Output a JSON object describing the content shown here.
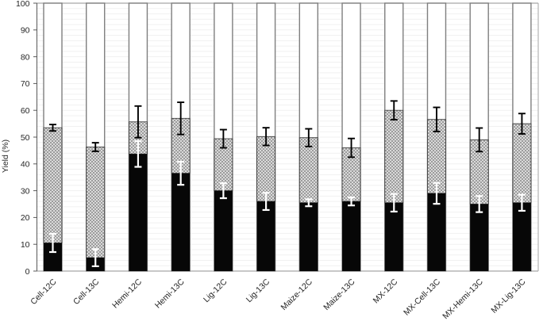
{
  "chart_data": {
    "type": "bar",
    "variant": "stacked-with-error-bars",
    "title": "",
    "xlabel": "",
    "ylabel": "Yield (%)",
    "ylim": [
      0,
      100
    ],
    "yticks": [
      0,
      10,
      20,
      30,
      40,
      50,
      60,
      70,
      80,
      90,
      100
    ],
    "grid": "minor horizontal gridlines every 2 units, very light",
    "legend": "none",
    "categories": [
      "Cell-12C",
      "Cell-13C",
      "Hemi-12C",
      "Hemi-13C",
      "Lig-12C",
      "Lig-13C",
      "Maize-12C",
      "Maize-13C",
      "MX-12C",
      "MX-Cell-13C",
      "MX-Hemi-13C",
      "MX-Lig-13C"
    ],
    "series": [
      {
        "name": "solid-black-bottom-segment",
        "description": "solid black segment from 0 up to value, white error bar at its top",
        "values": [
          10.5,
          5.0,
          43.7,
          36.5,
          30.0,
          26.0,
          25.5,
          26.0,
          25.5,
          29.0,
          25.0,
          25.5
        ],
        "errors": [
          3.4,
          3.2,
          4.8,
          4.3,
          2.8,
          3.2,
          1.3,
          1.5,
          3.3,
          3.9,
          3.0,
          3.0
        ]
      },
      {
        "name": "hatched-middle-segment",
        "description": "diagonal crosshatch segment stacked on black; cumulative top value listed, black error bar at its top",
        "cumulative_tops": [
          53.5,
          46.3,
          55.7,
          57.0,
          49.4,
          50.2,
          49.8,
          46.0,
          60.0,
          56.6,
          49.0,
          55.0
        ],
        "errors": [
          1.2,
          1.6,
          5.9,
          6.0,
          3.4,
          3.3,
          3.3,
          3.5,
          3.5,
          4.5,
          4.4,
          3.8
        ]
      },
      {
        "name": "open-white-top-segment",
        "description": "unfilled outlined segment extending from hatched top to 100 on every bar",
        "top_value": 100
      }
    ],
    "colors": {
      "black_segment": "#070707",
      "hatch_line": "#8f8f8f",
      "hatch_bg": "#ededed",
      "hatch_outline": "#3f3f3f",
      "bar_outline": "#7f7f7f",
      "open_segment_fill": "#ffffff",
      "error_bar_on_hatch": "#000000",
      "error_bar_on_black": "#ffffff",
      "gridline": "#f1f1f1",
      "axis_line": "#595959",
      "border_line": "#a6a6a6",
      "tick_label": "#262626"
    }
  }
}
